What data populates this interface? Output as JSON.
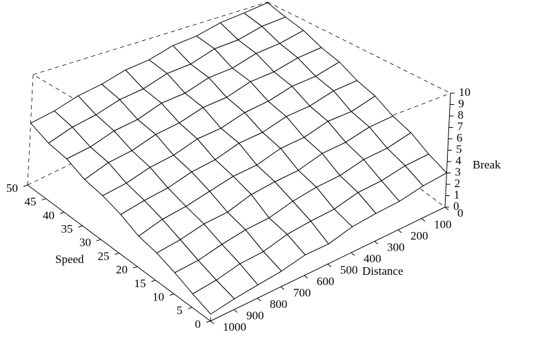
{
  "chart_data": {
    "type": "surface",
    "xlabel": "Distance",
    "ylabel": "Speed",
    "zlabel": "Break",
    "x": [
      0,
      100,
      200,
      300,
      400,
      500,
      600,
      700,
      800,
      900,
      1000
    ],
    "y": [
      0,
      5,
      10,
      15,
      20,
      25,
      30,
      35,
      40,
      45,
      50
    ],
    "z": [
      [
        3.0,
        2.8,
        2.4,
        2.3,
        2.1,
        1.6,
        1.6,
        1.2,
        1.0,
        0.8,
        0.5
      ],
      [
        3.6,
        3.5,
        3.1,
        3.0,
        2.5,
        2.4,
        2.2,
        1.7,
        1.6,
        1.2,
        1.0
      ],
      [
        4.5,
        4.0,
        3.9,
        3.4,
        3.3,
        3.0,
        2.5,
        2.4,
        2.1,
        1.7,
        1.6
      ],
      [
        5.0,
        4.9,
        4.4,
        4.3,
        3.7,
        3.6,
        3.4,
        2.8,
        2.7,
        2.3,
        2.1
      ],
      [
        5.9,
        5.3,
        5.3,
        4.7,
        4.6,
        4.0,
        3.9,
        3.5,
        3.1,
        2.9,
        2.4
      ],
      [
        6.4,
        6.3,
        5.7,
        5.6,
        5.0,
        4.9,
        4.3,
        4.1,
        3.6,
        3.4,
        3.1
      ],
      [
        7.3,
        6.7,
        6.6,
        6.0,
        5.8,
        5.2,
        5.1,
        4.5,
        4.3,
        3.8,
        3.6
      ],
      [
        7.8,
        7.6,
        7.0,
        6.9,
        6.2,
        6.1,
        5.5,
        5.3,
        4.7,
        4.5,
        3.9
      ],
      [
        8.7,
        8.1,
        7.9,
        7.2,
        7.1,
        6.4,
        6.3,
        5.6,
        5.4,
        4.8,
        4.6
      ],
      [
        9.2,
        9.0,
        8.3,
        8.2,
        7.4,
        7.3,
        6.6,
        6.4,
        5.8,
        5.5,
        4.9
      ],
      [
        9.9,
        9.5,
        9.2,
        8.5,
        8.3,
        7.6,
        7.4,
        6.8,
        6.5,
        5.9,
        5.6
      ]
    ],
    "xlim": [
      0,
      1000
    ],
    "xticks": [
      0,
      100,
      200,
      300,
      400,
      500,
      600,
      700,
      800,
      900,
      1000
    ],
    "ylim": [
      0,
      50
    ],
    "yticks": [
      0,
      5,
      10,
      15,
      20,
      25,
      30,
      35,
      40,
      45,
      50
    ],
    "zlim": [
      0,
      10
    ],
    "zticks": [
      0,
      1,
      2,
      3,
      4,
      5,
      6,
      7,
      8,
      9,
      10
    ],
    "color": "#ffffff",
    "line_color": "#000000"
  }
}
